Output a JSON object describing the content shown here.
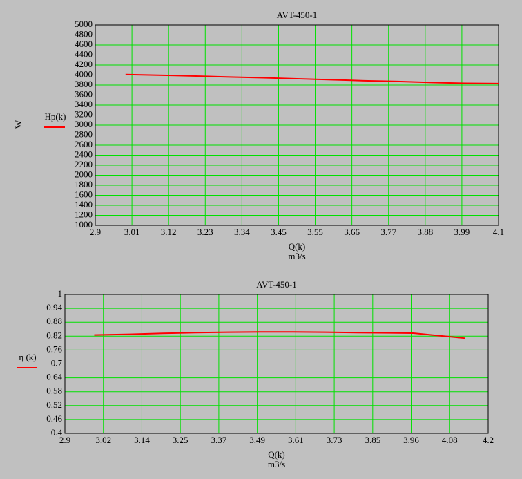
{
  "chart_data": [
    {
      "type": "line",
      "title": "AVT-450-1",
      "y_label": "W",
      "x_label": "Q(k)",
      "x_unit": "m3/s",
      "x": [
        2.99,
        3.1,
        3.2,
        3.3,
        3.4,
        3.5,
        3.6,
        3.7,
        3.8,
        3.9,
        4.0,
        4.1
      ],
      "series": [
        {
          "name": "Hp(k)",
          "color": "#ff0000",
          "values": [
            4010,
            3995,
            3980,
            3960,
            3945,
            3925,
            3905,
            3885,
            3870,
            3850,
            3835,
            3830
          ]
        }
      ],
      "xlim": [
        2.9,
        4.1
      ],
      "xticks": [
        {
          "value": 2.9,
          "label": "2.9"
        },
        {
          "value": 3.00909,
          "label": "3.01"
        },
        {
          "value": 3.11818,
          "label": "3.12"
        },
        {
          "value": 3.22727,
          "label": "3.23"
        },
        {
          "value": 3.33636,
          "label": "3.34"
        },
        {
          "value": 3.44545,
          "label": "3.45"
        },
        {
          "value": 3.55455,
          "label": "3.55"
        },
        {
          "value": 3.66364,
          "label": "3.66"
        },
        {
          "value": 3.77273,
          "label": "3.77"
        },
        {
          "value": 3.88182,
          "label": "3.88"
        },
        {
          "value": 3.99091,
          "label": "3.99"
        },
        {
          "value": 4.1,
          "label": "4.1"
        }
      ],
      "ylim": [
        1000,
        5000
      ],
      "yticks": [
        1000,
        1200,
        1400,
        1600,
        1800,
        2000,
        2200,
        2400,
        2600,
        2800,
        3000,
        3200,
        3400,
        3600,
        3800,
        4000,
        4200,
        4400,
        4600,
        4800,
        5000
      ],
      "grid": true,
      "grid_color": "#00e000"
    },
    {
      "type": "line",
      "title": "AVT-450-1",
      "x_label": "Q(k)",
      "x_unit": "m3/s",
      "x": [
        2.99,
        3.1,
        3.2,
        3.3,
        3.4,
        3.5,
        3.6,
        3.7,
        3.8,
        3.9,
        3.97,
        4.05,
        4.13
      ],
      "series": [
        {
          "name": "η (k)",
          "color": "#ff0000",
          "values": [
            0.825,
            0.828,
            0.832,
            0.835,
            0.837,
            0.838,
            0.838,
            0.837,
            0.835,
            0.834,
            0.833,
            0.822,
            0.811
          ]
        }
      ],
      "xlim": [
        2.9,
        4.2
      ],
      "xticks": [
        {
          "value": 2.9,
          "label": "2.9"
        },
        {
          "value": 3.01818,
          "label": "3.02"
        },
        {
          "value": 3.13636,
          "label": "3.14"
        },
        {
          "value": 3.25455,
          "label": "3.25"
        },
        {
          "value": 3.37273,
          "label": "3.37"
        },
        {
          "value": 3.49091,
          "label": "3.49"
        },
        {
          "value": 3.60909,
          "label": "3.61"
        },
        {
          "value": 3.72727,
          "label": "3.73"
        },
        {
          "value": 3.84545,
          "label": "3.85"
        },
        {
          "value": 3.96364,
          "label": "3.96"
        },
        {
          "value": 4.08182,
          "label": "4.08"
        },
        {
          "value": 4.2,
          "label": "4.2"
        }
      ],
      "ylim": [
        0.4,
        1
      ],
      "yticks": [
        0.4,
        0.46,
        0.52,
        0.58,
        0.64,
        0.7,
        0.76,
        0.82,
        0.88,
        0.94,
        1
      ],
      "grid": true,
      "grid_color": "#00e000"
    }
  ]
}
